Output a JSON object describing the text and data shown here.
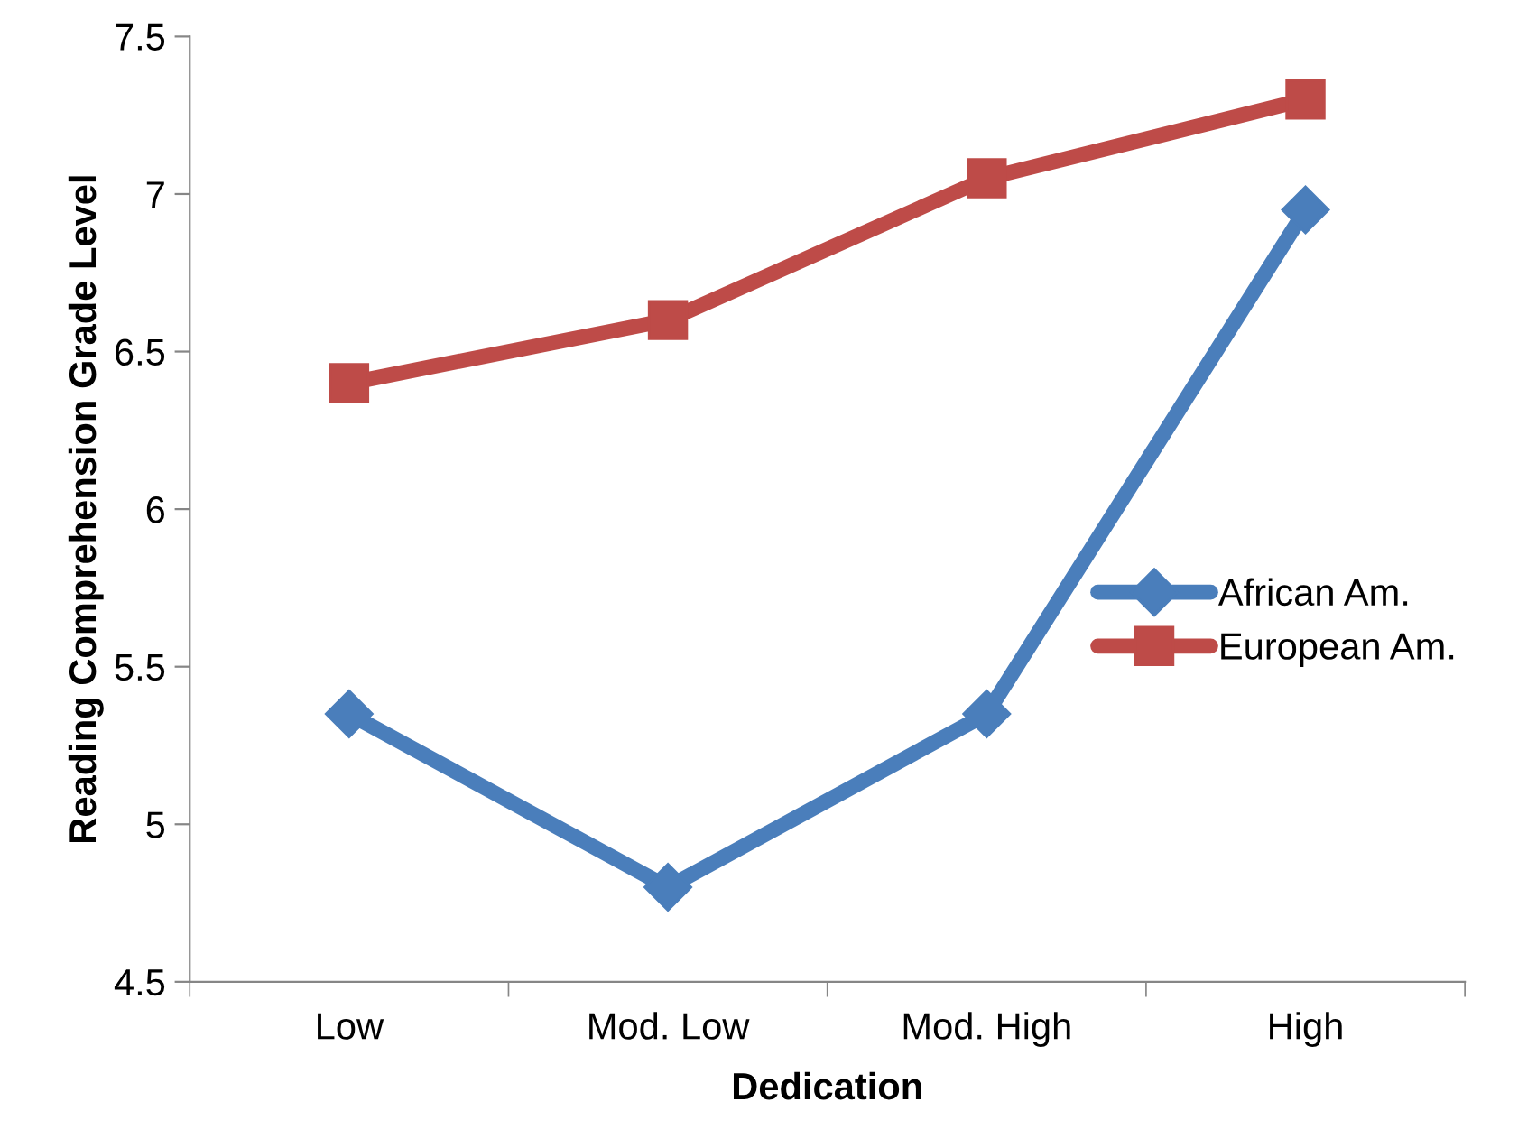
{
  "chart_data": {
    "type": "line",
    "xlabel": "Dedication",
    "ylabel": "Reading Comprehension Grade Level",
    "categories": [
      "Low",
      "Mod. Low",
      "Mod. High",
      "High"
    ],
    "series": [
      {
        "name": "African Am.",
        "color": "#4a7ebb",
        "marker": "diamond",
        "values": [
          5.35,
          4.8,
          5.35,
          6.95
        ]
      },
      {
        "name": "European Am.",
        "color": "#be4b48",
        "marker": "square",
        "values": [
          6.4,
          6.6,
          7.05,
          7.3
        ]
      }
    ],
    "ylim": [
      4.5,
      7.5
    ],
    "yticks": [
      4.5,
      5,
      5.5,
      6,
      6.5,
      7,
      7.5
    ],
    "grid": false,
    "legend": "right",
    "line_style": "solid"
  }
}
